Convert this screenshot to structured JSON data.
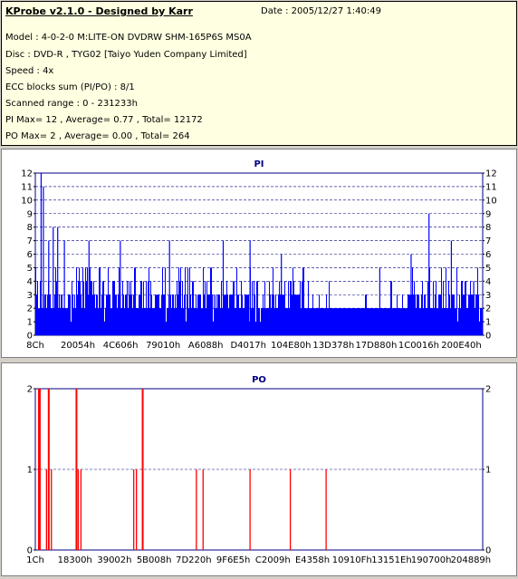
{
  "header": {
    "title": "KProbe v2.1.0 - Designed by Karr",
    "date": "Date : 2005/12/27 1:40:49",
    "lines": [
      "Model : 4-0-2-0 M:LITE-ON DVDRW SHM-165P6S MS0A",
      "Disc : DVD-R , TYG02 [Taiyo Yuden Company Limited]",
      "Speed : 4x",
      "ECC blocks sum (PI/PO) : 8/1",
      "Scanned range : 0 - 231233h",
      "PI Max= 12 , Average= 0.77 , Total= 12172",
      "PO Max= 2 , Average= 0.00 , Total= 264"
    ]
  },
  "colors": {
    "pi_series": "#0000ff",
    "po_series": "#ff0000",
    "chart_title": "#000080",
    "grid": "#000080",
    "info_bg": "#ffffe1",
    "window_bg": "#d4d0c8"
  },
  "chart_data": [
    {
      "type": "bar",
      "title": "PI",
      "xlabel": "",
      "ylabel": "",
      "ylim": [
        0,
        12
      ],
      "yticks": [
        0,
        1,
        2,
        3,
        4,
        5,
        6,
        7,
        8,
        9,
        10,
        11,
        12
      ],
      "x_tick_labels": [
        "8Ch",
        "20054h",
        "4C606h",
        "79010h",
        "A6088h",
        "D4017h",
        "104E80h",
        "13D378h",
        "17D880h",
        "1C0016h",
        "200E40h"
      ],
      "grid": true,
      "x_range_hex": [
        "0",
        "231233h"
      ],
      "series": [
        {
          "name": "PI",
          "baseline": 2,
          "typical_peak_range": [
            3,
            4
          ],
          "spikes": [
            {
              "x_frac": 0.013,
              "value": 12
            },
            {
              "x_frac": 0.018,
              "value": 11
            },
            {
              "x_frac": 0.03,
              "value": 7
            },
            {
              "x_frac": 0.04,
              "value": 8
            },
            {
              "x_frac": 0.05,
              "value": 8
            },
            {
              "x_frac": 0.065,
              "value": 7
            },
            {
              "x_frac": 0.12,
              "value": 7
            },
            {
              "x_frac": 0.19,
              "value": 7
            },
            {
              "x_frac": 0.3,
              "value": 7
            },
            {
              "x_frac": 0.42,
              "value": 7
            },
            {
              "x_frac": 0.48,
              "value": 7
            },
            {
              "x_frac": 0.55,
              "value": 6
            },
            {
              "x_frac": 0.6,
              "value": 5
            },
            {
              "x_frac": 0.77,
              "value": 5
            },
            {
              "x_frac": 0.84,
              "value": 6
            },
            {
              "x_frac": 0.88,
              "value": 9
            },
            {
              "x_frac": 0.93,
              "value": 7
            },
            {
              "x_frac": 0.98,
              "value": 4
            }
          ],
          "low_region": {
            "from_frac": 0.6,
            "to_frac": 0.83,
            "level": 2
          }
        }
      ]
    },
    {
      "type": "bar",
      "title": "PO",
      "xlabel": "",
      "ylabel": "",
      "ylim": [
        0,
        2
      ],
      "yticks": [
        0,
        1,
        2
      ],
      "x_tick_labels": [
        "1Ch",
        "18300h",
        "39002h",
        "5B008h",
        "7D220h",
        "9F6E5h",
        "C2009h",
        "E4358h",
        "10910Fh",
        "13151Eh",
        "190700h",
        "204889h"
      ],
      "grid": true,
      "x_range_hex": [
        "0",
        "231233h"
      ],
      "series": [
        {
          "name": "PO",
          "spikes": [
            {
              "x_frac": 0.008,
              "value": 2
            },
            {
              "x_frac": 0.01,
              "value": 2
            },
            {
              "x_frac": 0.025,
              "value": 1
            },
            {
              "x_frac": 0.03,
              "value": 2
            },
            {
              "x_frac": 0.036,
              "value": 1
            },
            {
              "x_frac": 0.092,
              "value": 2
            },
            {
              "x_frac": 0.096,
              "value": 1
            },
            {
              "x_frac": 0.102,
              "value": 1
            },
            {
              "x_frac": 0.22,
              "value": 1
            },
            {
              "x_frac": 0.226,
              "value": 1
            },
            {
              "x_frac": 0.24,
              "value": 2
            },
            {
              "x_frac": 0.36,
              "value": 1
            },
            {
              "x_frac": 0.375,
              "value": 1
            },
            {
              "x_frac": 0.48,
              "value": 1
            },
            {
              "x_frac": 0.57,
              "value": 1
            },
            {
              "x_frac": 0.65,
              "value": 1
            }
          ]
        }
      ]
    }
  ]
}
